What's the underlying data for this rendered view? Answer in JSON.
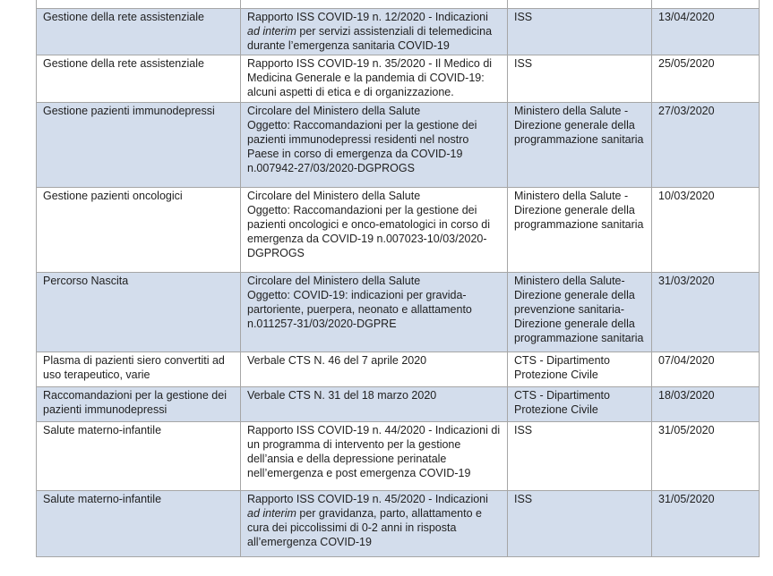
{
  "table": {
    "description": "Elenco documenti COVID-19 (argomento, documento, fonte, data)",
    "shaded_row_color": "#d3ddec",
    "border_color": "#a6a6a6",
    "text_color": "#1f1f1f",
    "rows": [
      {
        "topic": "Gestione della rete assistenziale",
        "document_parts": [
          {
            "text": "Rapporto ISS COVID-19 n. 12/2020 - Indicazioni "
          },
          {
            "text": "ad interim",
            "italic": true
          },
          {
            "text": " per servizi assistenziali di telemedicina durante l’emergenza sanitaria COVID-19"
          }
        ],
        "source": "ISS",
        "date": "13/04/2020",
        "shaded": true
      },
      {
        "topic": "Gestione della rete assistenziale",
        "document_parts": [
          {
            "text": "Rapporto ISS COVID-19 n. 35/2020 - Il Medico di Medicina Generale e la pandemia di COVID-19: alcuni aspetti di etica e di organizzazione."
          }
        ],
        "source": "ISS",
        "date": "25/05/2020",
        "shaded": false
      },
      {
        "topic": "Gestione pazienti immunodepressi",
        "document_parts": [
          {
            "text": "Circolare del Ministero della Salute"
          },
          {
            "br": true
          },
          {
            "text": "Oggetto: Raccomandazioni per la gestione dei pazienti immunodepressi residenti nel nostro Paese in corso di emergenza da COVID-19 n.007942-27/03/2020-DGPROGS"
          }
        ],
        "source": "Ministero della Salute - Direzione generale della programmazione sanitaria",
        "date": "27/03/2020",
        "shaded": true
      },
      {
        "topic": "Gestione pazienti oncologici",
        "document_parts": [
          {
            "text": "Circolare del Ministero della Salute"
          },
          {
            "br": true
          },
          {
            "text": "Oggetto: Raccomandazioni per la gestione dei pazienti oncologici e onco-ematologici in corso di emergenza da COVID-19 n.007023-10/03/2020-DGPROGS"
          }
        ],
        "source": "Ministero della Salute - Direzione generale della programmazione sanitaria",
        "date": "10/03/2020",
        "shaded": false
      },
      {
        "topic": "Percorso Nascita",
        "document_parts": [
          {
            "text": "Circolare del Ministero della Salute"
          },
          {
            "br": true
          },
          {
            "text": "Oggetto: COVID-19: indicazioni per gravida-partoriente, puerpera, neonato e allattamento n.011257-31/03/2020-DGPRE"
          }
        ],
        "source": "Ministero della Salute- Direzione generale della prevenzione sanitaria- Direzione generale della programmazione sanitaria",
        "date": "31/03/2020",
        "shaded": true
      },
      {
        "topic": "Plasma di pazienti siero convertiti ad uso terapeutico, varie",
        "document_parts": [
          {
            "text": "Verbale CTS N. 46 del 7 aprile 2020"
          }
        ],
        "source": "CTS - Dipartimento Protezione Civile",
        "date": "07/04/2020",
        "shaded": false
      },
      {
        "topic": "Raccomandazioni per la gestione dei pazienti immunodepressi",
        "document_parts": [
          {
            "text": "Verbale CTS N. 31 del 18 marzo 2020"
          }
        ],
        "source": "CTS - Dipartimento Protezione Civile",
        "date": "18/03/2020",
        "shaded": true
      },
      {
        "topic": "Salute materno-infantile",
        "document_parts": [
          {
            "text": "Rapporto ISS COVID-19 n. 44/2020 - Indicazioni di un programma di intervento per la gestione dell’ansia e della depressione perinatale nell’emergenza e post emergenza COVID-19"
          }
        ],
        "source": "ISS",
        "date": "31/05/2020",
        "shaded": false
      },
      {
        "topic": "Salute materno-infantile",
        "document_parts": [
          {
            "text": "Rapporto ISS COVID-19 n. 45/2020 - Indicazioni "
          },
          {
            "text": "ad interim",
            "italic": true
          },
          {
            "text": " per gravidanza, parto, allattamento e cura dei piccolissimi di 0-2 anni in risposta all’emergenza COVID-19"
          }
        ],
        "source": "ISS",
        "date": "31/05/2020",
        "shaded": true
      }
    ]
  }
}
